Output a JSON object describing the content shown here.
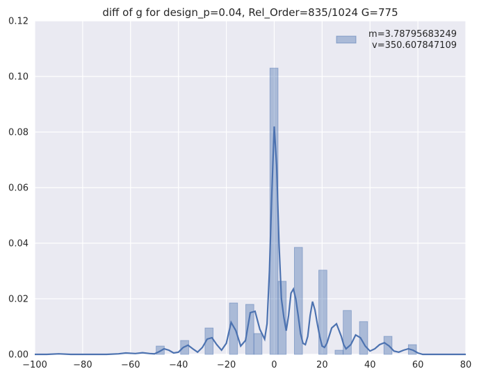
{
  "chart_data": {
    "type": "bar",
    "title": "diff of g for design_p=0.04, Rel_Order=835/1024 G=775",
    "xlabel": "",
    "ylabel": "",
    "xlim": [
      -100,
      80
    ],
    "ylim": [
      0,
      0.12
    ],
    "xticks": [
      -100,
      -80,
      -60,
      -40,
      -20,
      0,
      20,
      40,
      60,
      80
    ],
    "xtick_labels": [
      "−100",
      "−80",
      "−60",
      "−40",
      "−20",
      "0",
      "20",
      "40",
      "60",
      "80"
    ],
    "yticks": [
      0.0,
      0.02,
      0.04,
      0.06,
      0.08,
      0.1,
      0.12
    ],
    "ytick_labels": [
      "0.00",
      "0.02",
      "0.04",
      "0.06",
      "0.08",
      "0.10",
      "0.12"
    ],
    "grid": true,
    "legend_position": "top-right",
    "legend": {
      "line1": "m=3.78795683249",
      "line2": "v=350.607847109"
    },
    "histogram": {
      "bin_width": 3.4,
      "bins": [
        {
          "x": -47.6,
          "value": 0.003
        },
        {
          "x": -37.4,
          "value": 0.005
        },
        {
          "x": -27.2,
          "value": 0.0095
        },
        {
          "x": -17.0,
          "value": 0.0185
        },
        {
          "x": -10.2,
          "value": 0.018
        },
        {
          "x": -6.8,
          "value": 0.0075
        },
        {
          "x": -0.1,
          "value": 0.103
        },
        {
          "x": 3.3,
          "value": 0.0263
        },
        {
          "x": 10.1,
          "value": 0.0385
        },
        {
          "x": 20.3,
          "value": 0.0303
        },
        {
          "x": 27.1,
          "value": 0.0015
        },
        {
          "x": 30.5,
          "value": 0.0158
        },
        {
          "x": 37.3,
          "value": 0.0118
        },
        {
          "x": 47.5,
          "value": 0.0065
        },
        {
          "x": 57.7,
          "value": 0.0035
        }
      ]
    },
    "kde": {
      "x": [
        -100,
        -95,
        -90,
        -85,
        -80,
        -75,
        -70,
        -65,
        -62,
        -58,
        -55,
        -52,
        -50,
        -48,
        -46,
        -44,
        -42,
        -40,
        -38,
        -36,
        -34,
        -32,
        -30,
        -28,
        -26,
        -24,
        -22,
        -20,
        -18,
        -16,
        -14,
        -12,
        -10,
        -8,
        -6,
        -4,
        -3,
        -2,
        -1,
        0,
        1,
        2,
        3,
        4,
        5,
        6,
        7,
        8,
        9,
        10,
        11,
        12,
        13,
        14,
        15,
        16,
        17,
        18,
        19,
        20,
        21,
        22,
        24,
        26,
        28,
        29,
        30,
        32,
        34,
        36,
        38,
        40,
        42,
        44,
        46,
        48,
        50,
        52,
        54,
        56,
        58,
        60,
        62,
        65,
        70,
        75,
        80
      ],
      "y": [
        0.0,
        0.0,
        0.0002,
        0.0,
        0.0,
        0.0,
        0.0,
        0.0002,
        0.0005,
        0.0003,
        0.0006,
        0.0003,
        0.0002,
        0.001,
        0.002,
        0.0015,
        0.0005,
        0.0008,
        0.0025,
        0.0033,
        0.002,
        0.0008,
        0.0025,
        0.0055,
        0.006,
        0.0035,
        0.0015,
        0.004,
        0.0115,
        0.0085,
        0.003,
        0.005,
        0.015,
        0.0155,
        0.009,
        0.0055,
        0.011,
        0.03,
        0.058,
        0.082,
        0.068,
        0.04,
        0.02,
        0.0135,
        0.0085,
        0.014,
        0.022,
        0.0235,
        0.02,
        0.014,
        0.0075,
        0.004,
        0.0035,
        0.0065,
        0.014,
        0.019,
        0.016,
        0.011,
        0.0065,
        0.003,
        0.0025,
        0.004,
        0.0095,
        0.011,
        0.0065,
        0.0035,
        0.002,
        0.0035,
        0.007,
        0.006,
        0.003,
        0.0012,
        0.002,
        0.0035,
        0.0042,
        0.003,
        0.0012,
        0.0008,
        0.0015,
        0.002,
        0.0015,
        0.0005,
        0.0,
        0.0,
        0.0,
        0.0,
        0.0
      ]
    },
    "colors": {
      "background": "#eaeaf2",
      "grid": "#ffffff",
      "bar": "#4c72b0",
      "bar_opacity": 0.4,
      "line": "#4c72b0"
    }
  }
}
